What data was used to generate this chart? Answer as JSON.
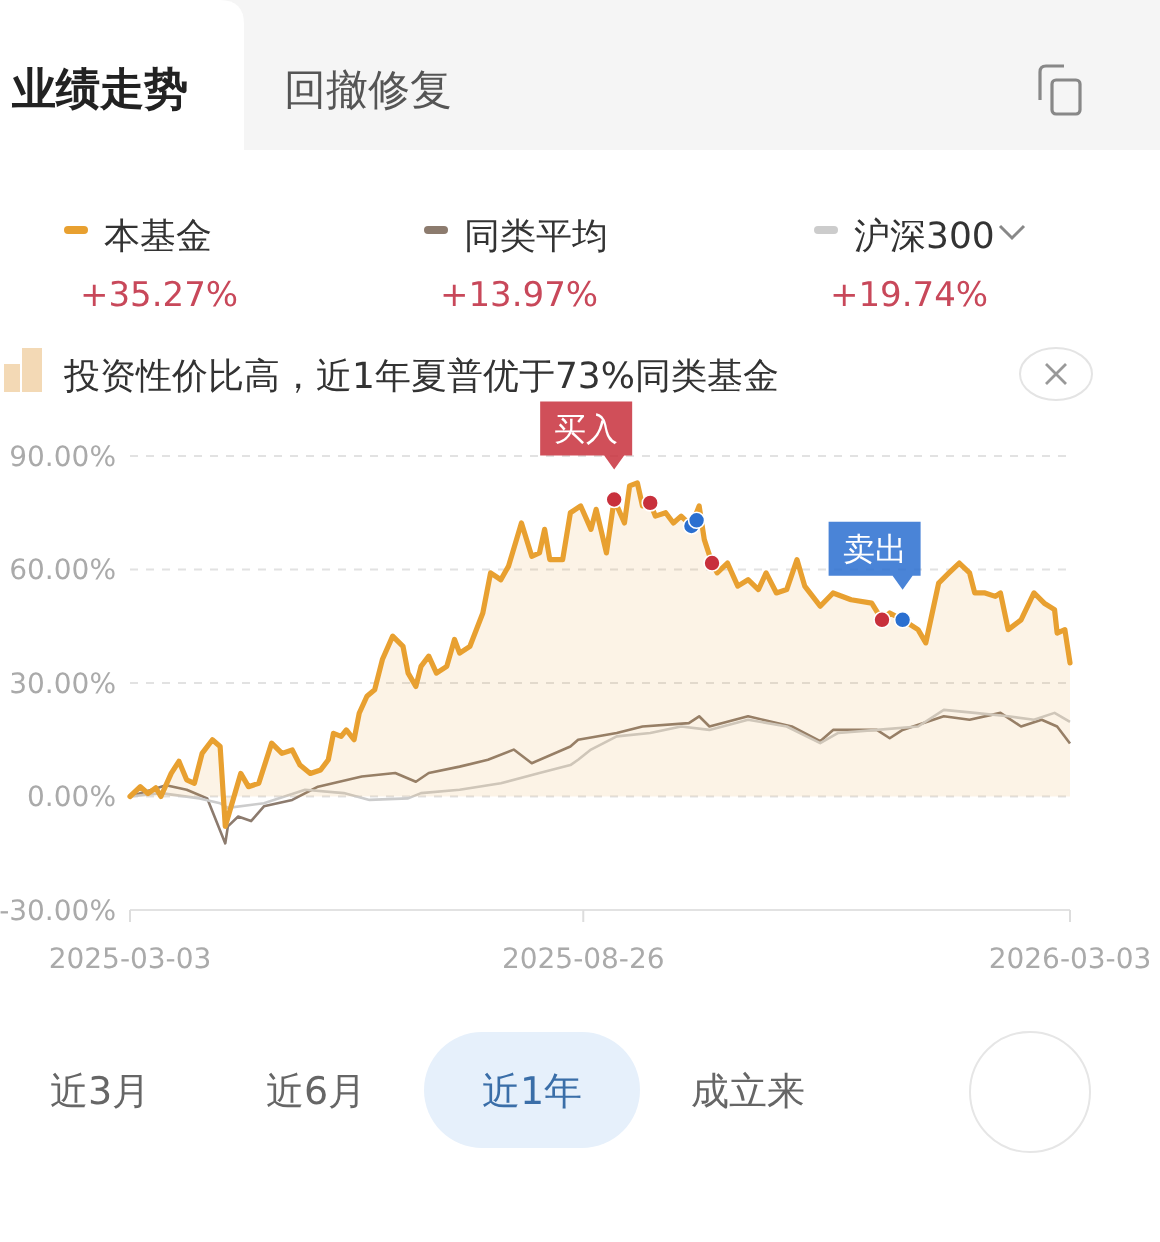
{
  "chart_data": {
    "type": "area",
    "title": "业绩走势",
    "xlim": [
      "2025-03-03",
      "2026-03-03"
    ],
    "xticks": [
      "2025-03-03",
      "2025-08-26",
      "2026-03-03"
    ],
    "ylim": [
      -30,
      90
    ],
    "yticks": [
      {
        "value": -30,
        "label": "-30.00%"
      },
      {
        "value": 0,
        "label": "0.00%"
      },
      {
        "value": 30,
        "label": "30.00%"
      },
      {
        "value": 60,
        "label": "60.00%"
      },
      {
        "value": 90,
        "label": "90.00%"
      }
    ],
    "grid": "y",
    "legend": "top",
    "series": [
      {
        "name": "本基金",
        "color": "#e8a030",
        "x": [
          "2025-03-03",
          "2025-03-07",
          "2025-03-10",
          "2025-03-13",
          "2025-03-15",
          "2025-03-19",
          "2025-03-22",
          "2025-03-25",
          "2025-03-28",
          "2025-03-31",
          "2025-04-04",
          "2025-04-07",
          "2025-04-09",
          "2025-04-12",
          "2025-04-15",
          "2025-04-18",
          "2025-04-22",
          "2025-04-27",
          "2025-05-01",
          "2025-05-05",
          "2025-05-08",
          "2025-05-12",
          "2025-05-16",
          "2025-05-19",
          "2025-05-21",
          "2025-05-24",
          "2025-05-26",
          "2025-05-29",
          "2025-05-31",
          "2025-06-03",
          "2025-06-06",
          "2025-06-09",
          "2025-06-13",
          "2025-06-17",
          "2025-06-19",
          "2025-06-22",
          "2025-06-24",
          "2025-06-27",
          "2025-06-30",
          "2025-07-04",
          "2025-07-07",
          "2025-07-09",
          "2025-07-13",
          "2025-07-18",
          "2025-07-21",
          "2025-07-25",
          "2025-07-28",
          "2025-08-02",
          "2025-08-06",
          "2025-08-09",
          "2025-08-11",
          "2025-08-13",
          "2025-08-18",
          "2025-08-21",
          "2025-08-25",
          "2025-08-29",
          "2025-08-31",
          "2025-09-04",
          "2025-09-07",
          "2025-09-11",
          "2025-09-13",
          "2025-09-16",
          "2025-09-18",
          "2025-09-21",
          "2025-09-23",
          "2025-09-27",
          "2025-09-30",
          "2025-10-03",
          "2025-10-07",
          "2025-10-10",
          "2025-10-12",
          "2025-10-15",
          "2025-10-17",
          "2025-10-21",
          "2025-10-25",
          "2025-10-29",
          "2025-11-02",
          "2025-11-05",
          "2025-11-09",
          "2025-11-13",
          "2025-11-17",
          "2025-11-20",
          "2025-11-26",
          "2025-12-01",
          "2025-12-08",
          "2025-12-16",
          "2025-12-20",
          "2025-12-23",
          "2025-12-28",
          "2026-01-03",
          "2026-01-06",
          "2026-01-11",
          "2026-01-15",
          "2026-01-19",
          "2026-01-23",
          "2026-01-25",
          "2026-01-29",
          "2026-02-02",
          "2026-02-04",
          "2026-02-07",
          "2026-02-12",
          "2026-02-17",
          "2026-02-21",
          "2026-02-25",
          "2026-02-26",
          "2026-03-01",
          "2026-03-03"
        ],
        "values": [
          0,
          2.6,
          0.8,
          2.3,
          0,
          6.1,
          9.3,
          4.4,
          3.5,
          11.4,
          15,
          13.2,
          -7.9,
          -0.9,
          6.1,
          2.6,
          3.5,
          14.1,
          11.4,
          12.3,
          8.3,
          6.1,
          7,
          9.7,
          16.7,
          15.9,
          17.6,
          15,
          22,
          26.5,
          28.2,
          36.2,
          42.4,
          39.7,
          32.6,
          29.1,
          34.4,
          37.1,
          32.6,
          34.4,
          41.5,
          37.9,
          39.7,
          48.5,
          59.1,
          57.3,
          60.9,
          72.3,
          63.5,
          64.4,
          70.6,
          62.6,
          62.6,
          75,
          76.8,
          70.6,
          75.9,
          64.4,
          78.5,
          72.3,
          82.1,
          82.9,
          76.8,
          77.6,
          74.1,
          75,
          72.3,
          74.1,
          71.5,
          76.8,
          67.9,
          61.7,
          59.1,
          61.7,
          55.6,
          57.3,
          54.7,
          59.1,
          53.8,
          54.7,
          62.6,
          55.6,
          50.3,
          53.8,
          52,
          51.1,
          46.7,
          48.5,
          46.7,
          44.1,
          40.6,
          56.4,
          59.1,
          61.7,
          59.1,
          53.8,
          53.8,
          52.9,
          53.8,
          44.1,
          46.7,
          53.8,
          51.1,
          49.4,
          43.2,
          44.1,
          35.3
        ]
      },
      {
        "name": "同类平均",
        "type": "line",
        "color": "#8c7b6e",
        "x": [
          "2025-03-03",
          "2025-03-17",
          "2025-03-25",
          "2025-04-02",
          "2025-04-09",
          "2025-04-10",
          "2025-04-14",
          "2025-04-19",
          "2025-04-24",
          "2025-05-05",
          "2025-05-15",
          "2025-06-01",
          "2025-06-14",
          "2025-06-22",
          "2025-06-27",
          "2025-07-09",
          "2025-07-20",
          "2025-07-30",
          "2025-08-06",
          "2025-08-21",
          "2025-08-24",
          "2025-09-08",
          "2025-09-18",
          "2025-10-06",
          "2025-10-10",
          "2025-10-14",
          "2025-10-29",
          "2025-11-15",
          "2025-11-26",
          "2025-12-01",
          "2025-12-18",
          "2025-12-23",
          "2025-12-28",
          "2026-01-13",
          "2026-01-23",
          "2026-02-04",
          "2026-02-12",
          "2026-02-20",
          "2026-02-26",
          "2026-03-03"
        ],
        "values": [
          0,
          3,
          1.8,
          -0.5,
          -12.4,
          -7.9,
          -5.3,
          -6.5,
          -2.6,
          -0.9,
          2.6,
          5.3,
          6.2,
          3.9,
          6.2,
          7.9,
          9.7,
          12.4,
          8.8,
          13.2,
          15,
          16.8,
          18.5,
          19.4,
          21.2,
          18.5,
          21.2,
          18.5,
          14.6,
          17.6,
          17.6,
          15.4,
          17.6,
          21.2,
          20.3,
          22.1,
          18.5,
          20.3,
          18.5,
          14
        ]
      },
      {
        "name": "沪深300",
        "type": "line",
        "color": "#cccccc",
        "x": [
          "2025-03-03",
          "2025-03-15",
          "2025-03-30",
          "2025-04-07",
          "2025-04-10",
          "2025-04-24",
          "2025-05-10",
          "2025-05-25",
          "2025-06-04",
          "2025-06-19",
          "2025-06-24",
          "2025-07-09",
          "2025-07-25",
          "2025-08-09",
          "2025-08-21",
          "2025-08-24",
          "2025-08-29",
          "2025-09-08",
          "2025-09-21",
          "2025-10-03",
          "2025-10-14",
          "2025-10-29",
          "2025-11-13",
          "2025-11-26",
          "2025-12-03",
          "2025-12-18",
          "2026-01-03",
          "2026-01-13",
          "2026-01-25",
          "2026-02-07",
          "2026-02-17",
          "2026-02-25",
          "2026-03-03"
        ],
        "values": [
          0,
          0.9,
          -0.5,
          -1.8,
          -3,
          -1.8,
          1.8,
          0.9,
          -0.9,
          -0.5,
          0.9,
          1.8,
          3.5,
          6.2,
          8.3,
          9.7,
          12.4,
          15.9,
          16.8,
          18.5,
          17.6,
          20.3,
          18.5,
          14.1,
          16.8,
          17.6,
          18.5,
          22.9,
          22.1,
          21.2,
          20.3,
          22.1,
          19.7
        ]
      },
      {
        "type": "scatter",
        "color": "#c8303c",
        "x": [
          "2025-09-07",
          "2025-09-21",
          "2025-10-15",
          "2025-12-20"
        ],
        "values": [
          78.5,
          77.6,
          61.7,
          46.7
        ]
      },
      {
        "type": "scatter",
        "color": "#2a6fd0",
        "x": [
          "2025-10-07",
          "2025-10-09",
          "2025-12-28"
        ],
        "values": [
          71.5,
          73,
          46.7
        ]
      }
    ],
    "annotations": [
      "回撤修复",
      "投资性价比高，近1年夏普优于73%同类基金",
      "+35.27%",
      "+13.97%",
      "+19.74%",
      "近3月",
      "近6月",
      "近1年",
      "成立来",
      {
        "text": "买入",
        "x": "2025-09-07",
        "y": 78.5
      },
      {
        "text": "卖出",
        "x": "2025-12-28",
        "y": 46.7
      }
    ]
  }
}
